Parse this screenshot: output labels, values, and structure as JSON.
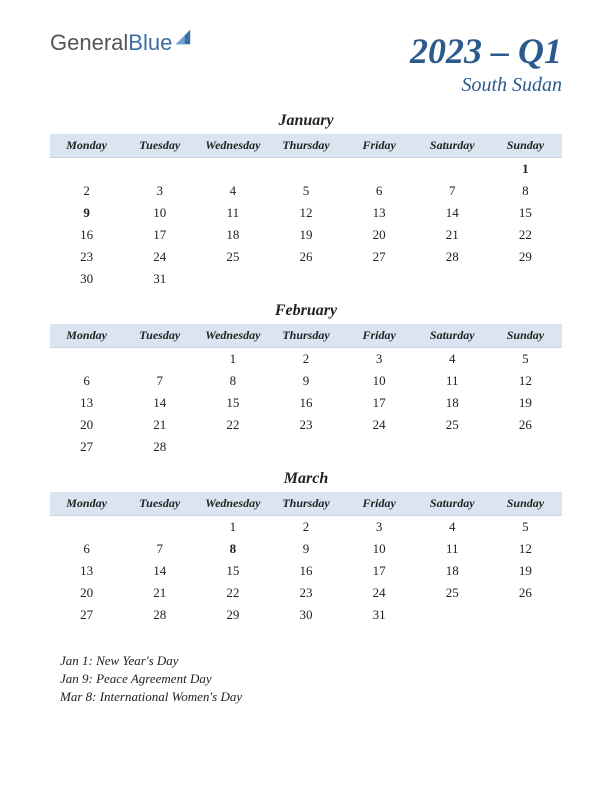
{
  "logo": {
    "part1": "General",
    "part2": "Blue"
  },
  "header": {
    "quarter": "2023 – Q1",
    "region": "South Sudan"
  },
  "weekdays": [
    "Monday",
    "Tuesday",
    "Wednesday",
    "Thursday",
    "Friday",
    "Saturday",
    "Sunday"
  ],
  "colors": {
    "header_bg": "#dbe5f1",
    "title_color": "#2b5a8c",
    "holiday_color": "#b02020",
    "text_color": "#222222",
    "background": "#ffffff"
  },
  "typography": {
    "quarter_fontsize": 36,
    "region_fontsize": 20,
    "month_fontsize": 16,
    "weekday_fontsize": 12,
    "day_fontsize": 13,
    "holiday_list_fontsize": 13
  },
  "months": [
    {
      "name": "January",
      "weeks": [
        [
          "",
          "",
          "",
          "",
          "",
          "",
          "1"
        ],
        [
          "2",
          "3",
          "4",
          "5",
          "6",
          "7",
          "8"
        ],
        [
          "9",
          "10",
          "11",
          "12",
          "13",
          "14",
          "15"
        ],
        [
          "16",
          "17",
          "18",
          "19",
          "20",
          "21",
          "22"
        ],
        [
          "23",
          "24",
          "25",
          "26",
          "27",
          "28",
          "29"
        ],
        [
          "30",
          "31",
          "",
          "",
          "",
          "",
          ""
        ]
      ],
      "holidays": [
        "1",
        "9"
      ]
    },
    {
      "name": "February",
      "weeks": [
        [
          "",
          "",
          "1",
          "2",
          "3",
          "4",
          "5"
        ],
        [
          "6",
          "7",
          "8",
          "9",
          "10",
          "11",
          "12"
        ],
        [
          "13",
          "14",
          "15",
          "16",
          "17",
          "18",
          "19"
        ],
        [
          "20",
          "21",
          "22",
          "23",
          "24",
          "25",
          "26"
        ],
        [
          "27",
          "28",
          "",
          "",
          "",
          "",
          ""
        ]
      ],
      "holidays": []
    },
    {
      "name": "March",
      "weeks": [
        [
          "",
          "",
          "1",
          "2",
          "3",
          "4",
          "5"
        ],
        [
          "6",
          "7",
          "8",
          "9",
          "10",
          "11",
          "12"
        ],
        [
          "13",
          "14",
          "15",
          "16",
          "17",
          "18",
          "19"
        ],
        [
          "20",
          "21",
          "22",
          "23",
          "24",
          "25",
          "26"
        ],
        [
          "27",
          "28",
          "29",
          "30",
          "31",
          "",
          ""
        ]
      ],
      "holidays": [
        "8"
      ]
    }
  ],
  "holiday_list": [
    "Jan 1: New Year's Day",
    "Jan 9: Peace Agreement Day",
    "Mar 8: International Women's Day"
  ]
}
